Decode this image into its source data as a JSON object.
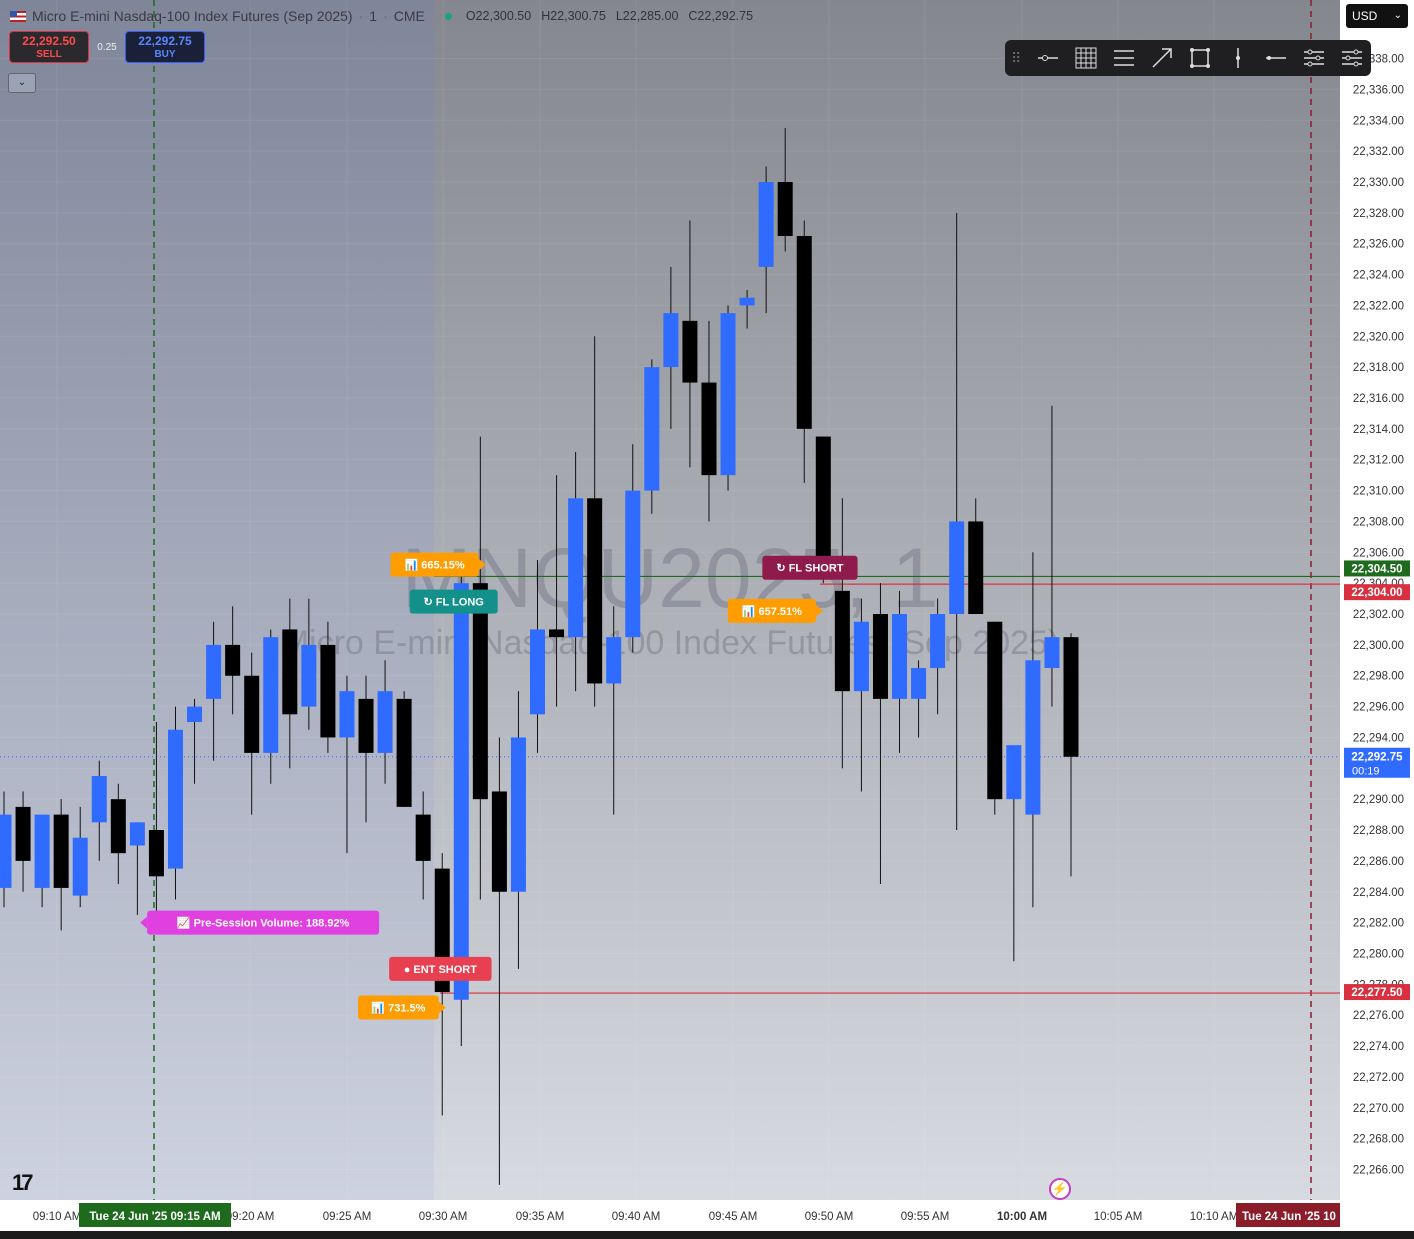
{
  "header": {
    "symbol_title": "Micro E-mini Nasdaq-100 Index Futures (Sep 2025)",
    "interval": "1",
    "exchange": "CME",
    "ohlc": {
      "open": "O22,300.50",
      "high": "H22,300.75",
      "low": "L22,285.00",
      "close": "C22,292.75"
    }
  },
  "trade_panel": {
    "sell_price": "22,292.50",
    "sell_label": "SELL",
    "spread": "0.25",
    "buy_price": "22,292.75",
    "buy_label": "BUY"
  },
  "currency": "USD",
  "toolbar_icons": [
    "horizontal-ray-icon",
    "grid-icon",
    "parallel-channel-icon",
    "trend-arrow-icon",
    "rectangle-icon",
    "vertical-line-icon",
    "horizontal-line-icon",
    "settings-lines-icon",
    "object-tree-icon"
  ],
  "watermark": {
    "symbol": "MNQU2025, 1",
    "name": "Micro E-mini Nasdaq-100 Index Futures (Sep 2025)"
  },
  "colors": {
    "up": "#2f6bff",
    "down": "#000000",
    "sell": "#e03040",
    "buy": "#2f6bff",
    "green_label": "#1e6b1e",
    "red_label": "#d93040",
    "price_label": "#2f6bff",
    "badge_orange": "#ff9d00",
    "badge_teal": "#14908a",
    "badge_maroon": "#8e1b4b",
    "badge_pink": "#e040e0",
    "badge_red": "#e84050",
    "bg_top": "#878a94",
    "bg_bottom": "#d5d8de",
    "session_bg": "#7a8ab0"
  },
  "axis": {
    "price_ticks": [
      "22,266.00",
      "22,268.00",
      "22,270.00",
      "22,272.00",
      "22,274.00",
      "22,276.00",
      "22,278.00",
      "22,280.00",
      "22,282.00",
      "22,284.00",
      "22,286.00",
      "22,288.00",
      "22,290.00",
      "22,292.00",
      "22,294.00",
      "22,296.00",
      "22,298.00",
      "22,300.00",
      "22,302.00",
      "22,304.00",
      "22,306.00",
      "22,308.00",
      "22,310.00",
      "22,312.00",
      "22,314.00",
      "22,316.00",
      "22,318.00",
      "22,320.00",
      "22,322.00",
      "22,324.00",
      "22,326.00",
      "22,328.00",
      "22,330.00",
      "22,332.00",
      "22,334.00",
      "22,336.00",
      "22,338.00"
    ],
    "time_ticks": [
      "09:10 AM",
      "09:20 AM",
      "09:25 AM",
      "09:30 AM",
      "09:35 AM",
      "09:40 AM",
      "09:45 AM",
      "09:50 AM",
      "09:55 AM",
      "10:00 AM",
      "10:05 AM",
      "10:10 AM"
    ],
    "time_marker_left": "Tue 24 Jun '25   09:15 AM",
    "time_marker_right": "Tue 24 Jun '25   10"
  },
  "price_labels": [
    {
      "text": "22,304.50",
      "price": 22304.5,
      "color": "#1e6b1e"
    },
    {
      "text": "22,304.00",
      "price": 22304.0,
      "color": "#d93040"
    },
    {
      "text": "22,277.50",
      "price": 22277.5,
      "color": "#d93040"
    }
  ],
  "current_price": {
    "price": 22292.75,
    "text": "22,292.75",
    "countdown": "00:19"
  },
  "annotations": [
    {
      "text": "📊 665.15%",
      "color": "#ff9d00",
      "price": 22305.2,
      "time_index": 22.6,
      "arrow": "right"
    },
    {
      "text": "↻ FL  LONG",
      "color": "#14908a",
      "price": 22302.8,
      "time_index": 23.6,
      "arrow": "none"
    },
    {
      "text": "↻ FL  SHORT",
      "color": "#8e1b4b",
      "price": 22305.0,
      "time_index": 42.3,
      "arrow": "none"
    },
    {
      "text": "📊 657.51%",
      "color": "#ff9d00",
      "price": 22302.2,
      "time_index": 40.3,
      "arrow": "right"
    },
    {
      "text": "📈 Pre-Session Volume: 188.92%",
      "color": "#e040e0",
      "price": 22282.0,
      "time_index": 13.6,
      "arrow": "left"
    },
    {
      "text": "● ENT  SHORT",
      "color": "#e84050",
      "price": 22279.0,
      "time_index": 22.9,
      "arrow": "none"
    },
    {
      "text": "📊 731.5%",
      "color": "#ff9d00",
      "price": 22276.5,
      "time_index": 20.7,
      "arrow": "right"
    }
  ],
  "chart_data": {
    "type": "candlestick",
    "title": "Micro E-mini Nasdaq-100 Index Futures (Sep 2025)",
    "interval": "1 minute",
    "ylim": [
      22265,
      22339
    ],
    "time_start": "09:10 AM",
    "horizontal_lines": [
      {
        "price": 22304.5,
        "color": "#1e6b1e"
      },
      {
        "price": 22304.0,
        "color": "#d93040"
      },
      {
        "price": 22277.5,
        "color": "#d93040"
      }
    ],
    "vertical_markers": [
      {
        "time": "09:15 AM",
        "style": "dashed",
        "color": "#1e6b1e"
      },
      {
        "time": "10:10 AM",
        "style": "dashed",
        "color": "#8b1d2a"
      }
    ],
    "candles": [
      {
        "t": "09:10",
        "o": 22284.25,
        "h": 22290.5,
        "l": 22283.0,
        "c": 22289.0
      },
      {
        "t": "09:11",
        "o": 22289.5,
        "h": 22290.5,
        "l": 22284.0,
        "c": 22286.0
      },
      {
        "t": "09:12",
        "o": 22284.25,
        "h": 22289.0,
        "l": 22283.0,
        "c": 22289.0
      },
      {
        "t": "09:13",
        "o": 22289.0,
        "h": 22290.0,
        "l": 22281.5,
        "c": 22284.25
      },
      {
        "t": "09:14",
        "o": 22283.75,
        "h": 22289.5,
        "l": 22283.0,
        "c": 22287.5
      },
      {
        "t": "09:15",
        "o": 22288.5,
        "h": 22292.5,
        "l": 22286.0,
        "c": 22291.5
      },
      {
        "t": "09:16",
        "o": 22290.0,
        "h": 22291.0,
        "l": 22284.5,
        "c": 22286.5
      },
      {
        "t": "09:17",
        "o": 22287.0,
        "h": 22288.5,
        "l": 22282.5,
        "c": 22288.5
      },
      {
        "t": "09:18",
        "o": 22288.0,
        "h": 22295.0,
        "l": 22282.5,
        "c": 22285.0
      },
      {
        "t": "09:19",
        "o": 22285.5,
        "h": 22296.0,
        "l": 22283.5,
        "c": 22294.5
      },
      {
        "t": "09:20",
        "o": 22295.0,
        "h": 22296.5,
        "l": 22291.0,
        "c": 22296.0
      },
      {
        "t": "09:21",
        "o": 22296.5,
        "h": 22301.5,
        "l": 22292.5,
        "c": 22300.0
      },
      {
        "t": "09:22",
        "o": 22300.0,
        "h": 22302.5,
        "l": 22295.5,
        "c": 22298.0
      },
      {
        "t": "09:23",
        "o": 22298.0,
        "h": 22299.5,
        "l": 22289.0,
        "c": 22293.0
      },
      {
        "t": "09:24",
        "o": 22293.0,
        "h": 22301.0,
        "l": 22291.0,
        "c": 22300.5
      },
      {
        "t": "09:25",
        "o": 22301.0,
        "h": 22303.0,
        "l": 22292.0,
        "c": 22295.5
      },
      {
        "t": "09:26",
        "o": 22296.0,
        "h": 22303.0,
        "l": 22294.5,
        "c": 22300.0
      },
      {
        "t": "09:27",
        "o": 22300.0,
        "h": 22301.5,
        "l": 22293.0,
        "c": 22294.0
      },
      {
        "t": "09:28",
        "o": 22294.0,
        "h": 22298.0,
        "l": 22286.5,
        "c": 22297.0
      },
      {
        "t": "09:29",
        "o": 22296.5,
        "h": 22298.0,
        "l": 22288.5,
        "c": 22293.0
      },
      {
        "t": "09:30",
        "o": 22293.0,
        "h": 22299.0,
        "l": 22291.0,
        "c": 22297.0
      },
      {
        "t": "09:31",
        "o": 22296.5,
        "h": 22297.0,
        "l": 22289.5,
        "c": 22289.5
      },
      {
        "t": "09:32",
        "o": 22289.0,
        "h": 22290.5,
        "l": 22283.5,
        "c": 22286.0
      },
      {
        "t": "09:33",
        "o": 22285.5,
        "h": 22286.5,
        "l": 22269.5,
        "c": 22277.5
      },
      {
        "t": "09:34",
        "o": 22277.0,
        "h": 22305.0,
        "l": 22274.0,
        "c": 22304.0
      },
      {
        "t": "09:35",
        "o": 22304.0,
        "h": 22313.5,
        "l": 22283.5,
        "c": 22290.0
      },
      {
        "t": "09:36",
        "o": 22290.5,
        "h": 22294.0,
        "l": 22265.0,
        "c": 22284.0
      },
      {
        "t": "09:37",
        "o": 22284.0,
        "h": 22297.0,
        "l": 22279.0,
        "c": 22294.0
      },
      {
        "t": "09:38",
        "o": 22295.5,
        "h": 22305.5,
        "l": 22293.0,
        "c": 22301.0
      },
      {
        "t": "09:39",
        "o": 22301.0,
        "h": 22311.0,
        "l": 22296.0,
        "c": 22300.5
      },
      {
        "t": "09:40",
        "o": 22300.5,
        "h": 22312.5,
        "l": 22297.0,
        "c": 22309.5
      },
      {
        "t": "09:41",
        "o": 22309.5,
        "h": 22320.0,
        "l": 22296.0,
        "c": 22297.5
      },
      {
        "t": "09:42",
        "o": 22297.5,
        "h": 22302.5,
        "l": 22289.0,
        "c": 22300.5
      },
      {
        "t": "09:43",
        "o": 22300.5,
        "h": 22313.0,
        "l": 22299.5,
        "c": 22310.0
      },
      {
        "t": "09:44",
        "o": 22310.0,
        "h": 22318.5,
        "l": 22308.5,
        "c": 22318.0
      },
      {
        "t": "09:45",
        "o": 22318.0,
        "h": 22324.5,
        "l": 22314.0,
        "c": 22321.5
      },
      {
        "t": "09:46",
        "o": 22321.0,
        "h": 22327.5,
        "l": 22311.5,
        "c": 22317.0
      },
      {
        "t": "09:47",
        "o": 22317.0,
        "h": 22321.0,
        "l": 22308.0,
        "c": 22311.0
      },
      {
        "t": "09:48",
        "o": 22311.0,
        "h": 22322.0,
        "l": 22310.0,
        "c": 22321.5
      },
      {
        "t": "09:49",
        "o": 22322.0,
        "h": 22323.0,
        "l": 22320.5,
        "c": 22322.5
      },
      {
        "t": "09:50",
        "o": 22324.5,
        "h": 22331.0,
        "l": 22321.5,
        "c": 22330.0
      },
      {
        "t": "09:51",
        "o": 22330.0,
        "h": 22333.5,
        "l": 22325.5,
        "c": 22326.5
      },
      {
        "t": "09:52",
        "o": 22326.5,
        "h": 22327.5,
        "l": 22310.5,
        "c": 22314.0
      },
      {
        "t": "09:53",
        "o": 22313.5,
        "h": 22313.5,
        "l": 22304.0,
        "c": 22305.5
      },
      {
        "t": "09:54",
        "o": 22303.5,
        "h": 22309.5,
        "l": 22292.0,
        "c": 22297.0
      },
      {
        "t": "09:55",
        "o": 22297.0,
        "h": 22303.0,
        "l": 22290.5,
        "c": 22301.5
      },
      {
        "t": "09:56",
        "o": 22302.0,
        "h": 22304.0,
        "l": 22284.5,
        "c": 22296.5
      },
      {
        "t": "09:57",
        "o": 22296.5,
        "h": 22303.5,
        "l": 22293.0,
        "c": 22302.0
      },
      {
        "t": "09:58",
        "o": 22296.5,
        "h": 22299.0,
        "l": 22294.0,
        "c": 22298.5
      },
      {
        "t": "09:59",
        "o": 22298.5,
        "h": 22303.0,
        "l": 22295.5,
        "c": 22302.0
      },
      {
        "t": "10:00",
        "o": 22302.0,
        "h": 22328.0,
        "l": 22288.0,
        "c": 22308.0
      },
      {
        "t": "10:01",
        "o": 22308.0,
        "h": 22309.5,
        "l": 22302.0,
        "c": 22302.0
      },
      {
        "t": "10:02",
        "o": 22301.5,
        "h": 22301.5,
        "l": 22289.0,
        "c": 22290.0
      },
      {
        "t": "10:03",
        "o": 22290.0,
        "h": 22293.0,
        "l": 22279.5,
        "c": 22293.5
      },
      {
        "t": "10:04",
        "o": 22289.0,
        "h": 22306.0,
        "l": 22283.0,
        "c": 22299.0
      },
      {
        "t": "10:05",
        "o": 22298.5,
        "h": 22315.5,
        "l": 22296.0,
        "c": 22300.5
      },
      {
        "t": "10:06",
        "o": 22300.5,
        "h": 22300.75,
        "l": 22285.0,
        "c": 22292.75
      }
    ]
  }
}
